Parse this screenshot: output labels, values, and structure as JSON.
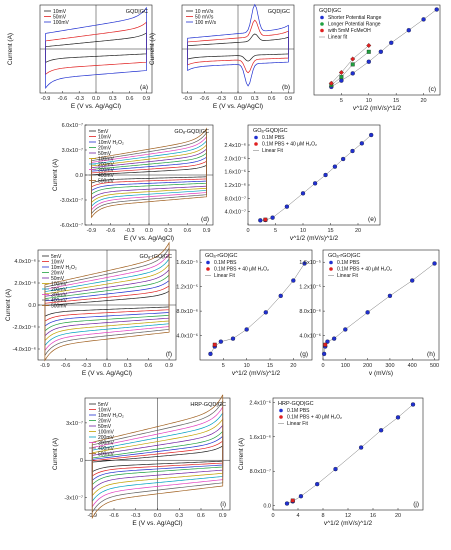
{
  "chart_data": [
    {
      "id": "a",
      "type": "line",
      "label": "(a)",
      "xlabel": "E (V vs. Ag/AgCl)",
      "ylabel": "Current (A)",
      "xlim": [
        -1.0,
        1.0
      ],
      "ylim": [
        -1.2,
        1.2
      ],
      "xticks": [
        "-0.9",
        "-0.6",
        "-0.3",
        "0.0",
        "0.3",
        "0.6",
        "0.9"
      ],
      "yticks": [],
      "annotation": "GQD|GC",
      "series": [
        {
          "name": "10mV",
          "color": "#222222",
          "ya": 0.2,
          "yc": -0.2,
          "slope": 0.15,
          "tip": 0.1
        },
        {
          "name": "50mV",
          "color": "#e02020",
          "ya": 0.4,
          "yc": -0.45,
          "slope": 0.2,
          "tip": 0.15
        },
        {
          "name": "100mV",
          "color": "#2030d0",
          "ya": 0.65,
          "yc": -0.7,
          "slope": 0.25,
          "tip": 0.25
        }
      ]
    },
    {
      "id": "b",
      "type": "line",
      "label": "(b)",
      "xlabel": "E (V vs. Ag/AgCl)",
      "ylabel": "Current (A)",
      "xlim": [
        -1.0,
        1.0
      ],
      "ylim": [
        -1.2,
        1.2
      ],
      "xticks": [
        "-0.9",
        "-0.6",
        "-0.3",
        "0.0",
        "0.3",
        "0.6",
        "0.9"
      ],
      "yticks": [],
      "annotation": "GQD|GC",
      "series": [
        {
          "name": "10 mV/s",
          "color": "#222222",
          "ya": 0.18,
          "yc": -0.18,
          "slope": 0.1,
          "tip": 0.05,
          "peak": 0.2
        },
        {
          "name": "50 mV/s",
          "color": "#e02020",
          "ya": 0.3,
          "yc": -0.3,
          "slope": 0.12,
          "tip": 0.08,
          "peak": 0.45
        },
        {
          "name": "100 mV/s",
          "color": "#2030d0",
          "ya": 0.42,
          "yc": -0.42,
          "slope": 0.14,
          "tip": 0.1,
          "peak": 0.75
        }
      ]
    },
    {
      "id": "c",
      "type": "scatter",
      "label": "(c)",
      "xlabel": "v^1/2 (mV/s)^1/2",
      "ylabel": "",
      "xlim": [
        0,
        23
      ],
      "ylim": [
        0,
        1.0
      ],
      "xticks": [
        "5",
        "10",
        "15",
        "20"
      ],
      "yticks": [],
      "annotation": "GQD|GC",
      "series": [
        {
          "name": "Shorter Potential Range",
          "color": "#2030d0",
          "x": [
            3.16,
            5,
            7.07,
            10,
            12.2,
            14.1,
            17.3,
            20,
            22.4
          ],
          "y": [
            0.09,
            0.16,
            0.24,
            0.37,
            0.48,
            0.58,
            0.72,
            0.84,
            0.95
          ]
        },
        {
          "name": "Longer Potential Range",
          "color": "#20a040",
          "x": [
            3.16,
            5,
            7.07,
            10
          ],
          "y": [
            0.11,
            0.2,
            0.34,
            0.48
          ]
        },
        {
          "name": "with 5mM FcMeOH",
          "color": "#e02020",
          "x": [
            3.16,
            5,
            7.07,
            10
          ],
          "y": [
            0.13,
            0.25,
            0.4,
            0.55
          ]
        },
        {
          "name": "Linear fit",
          "color": "#888888",
          "x": [],
          "y": []
        }
      ]
    },
    {
      "id": "d",
      "type": "line",
      "label": "(d)",
      "xlabel": "E (V vs. Ag/AgCl)",
      "ylabel": "Current (A)",
      "xlim": [
        -1.0,
        1.0
      ],
      "ylim": [
        -6.0,
        6.0
      ],
      "xticks": [
        "-0.9",
        "-0.6",
        "-0.3",
        "0.0",
        "0.3",
        "0.6",
        "0.9"
      ],
      "yticks": [
        "-6.0x10⁻⁷",
        "-3.0x10⁻⁷",
        "0.0",
        "3.0x10⁻⁷",
        "6.0x10⁻⁷"
      ],
      "yticks_values": [
        -6,
        -3,
        0,
        3,
        6
      ],
      "annotation": "GOₐ-GQD|GC",
      "series": [
        {
          "name": "5mV",
          "color": "#222222",
          "ya": 0.4,
          "yc": -0.4,
          "slope": 0.4,
          "tip": 0.4
        },
        {
          "name": "10mV",
          "color": "#e02020",
          "ya": 0.7,
          "yc": -0.7,
          "slope": 0.5,
          "tip": 0.5
        },
        {
          "name": "10mV H₂O₂",
          "color": "#2030d0",
          "ya": 1.0,
          "yc": -1.0,
          "slope": 0.6,
          "tip": 0.6
        },
        {
          "name": "20mV",
          "color": "#20a040",
          "ya": 1.3,
          "yc": -1.3,
          "slope": 0.7,
          "tip": 0.7
        },
        {
          "name": "50mV",
          "color": "#7020a0",
          "ya": 1.6,
          "yc": -1.7,
          "slope": 0.8,
          "tip": 0.8
        },
        {
          "name": "100mV",
          "color": "#c0a000",
          "ya": 1.9,
          "yc": -2.0,
          "slope": 0.9,
          "tip": 0.9
        },
        {
          "name": "200mV",
          "color": "#00a0c0",
          "ya": 2.2,
          "yc": -2.3,
          "slope": 1.0,
          "tip": 1.0
        },
        {
          "name": "300mV",
          "color": "#e040c0",
          "ya": 2.5,
          "yc": -2.6,
          "slope": 1.1,
          "tip": 1.1
        },
        {
          "name": "400mV",
          "color": "#606060",
          "ya": 2.8,
          "yc": -2.9,
          "slope": 1.2,
          "tip": 1.2
        },
        {
          "name": "500mV",
          "color": "#a06020",
          "ya": 3.1,
          "yc": -3.2,
          "slope": 1.3,
          "tip": 1.3
        }
      ]
    },
    {
      "id": "e",
      "type": "scatter",
      "label": "(e)",
      "xlabel": "v^1/2 (mV/s)^1/2",
      "ylabel": "",
      "xlim": [
        0,
        24
      ],
      "ylim": [
        0,
        3.0
      ],
      "xticks": [
        "0",
        "5",
        "10",
        "15",
        "20"
      ],
      "xticks_values": [
        0,
        5,
        10,
        15,
        20
      ],
      "yticks": [
        "4.0x10⁻⁷",
        "8.0x10⁻⁷",
        "1.2x10⁻⁶",
        "1.6x10⁻⁶",
        "2.0x10⁻⁶",
        "2.4x10⁻⁶"
      ],
      "yticks_values": [
        0.4,
        0.8,
        1.2,
        1.6,
        2.0,
        2.4
      ],
      "annotation": "GOₐ-GQD|GC",
      "series": [
        {
          "name": "0.1M PBS",
          "color": "#2030d0",
          "x": [
            2.24,
            3.16,
            4.47,
            7.07,
            10,
            12.2,
            14.1,
            15.8,
            17.3,
            19.0,
            20.7,
            22.4
          ],
          "y": [
            0.14,
            0.15,
            0.22,
            0.55,
            0.95,
            1.25,
            1.5,
            1.75,
            1.98,
            2.22,
            2.45,
            2.7
          ]
        },
        {
          "name": "0.1M PBS + 40 μM H₂O₂",
          "color": "#e02020",
          "x": [
            3.16
          ],
          "y": [
            0.16
          ]
        },
        {
          "name": "Linear Fit",
          "color": "#888888",
          "x": [],
          "y": []
        }
      ]
    },
    {
      "id": "f",
      "type": "line",
      "label": "(f)",
      "xlabel": "E (V vs. Ag/AgCl)",
      "ylabel": "Current (A)",
      "xlim": [
        -1.0,
        1.0
      ],
      "ylim": [
        -5.0,
        5.0
      ],
      "xticks": [
        "-0.9",
        "-0.6",
        "-0.3",
        "0.0",
        "0.3",
        "0.6",
        "0.9"
      ],
      "yticks": [
        "-4.0x10⁻⁶",
        "-2.0x10⁻⁶",
        "0.0",
        "2.0x10⁻⁶",
        "4.0x10⁻⁶"
      ],
      "yticks_values": [
        -4,
        -2,
        0,
        2,
        4
      ],
      "annotation": "GOₐ-rGO|GC",
      "series": [
        {
          "name": "5mV",
          "color": "#222222",
          "ya": 0.4,
          "yc": -0.4,
          "slope": 0.5,
          "tip": 0.4
        },
        {
          "name": "10mV",
          "color": "#e02020",
          "ya": 0.7,
          "yc": -0.7,
          "slope": 0.6,
          "tip": 0.5
        },
        {
          "name": "10mV H₂O₂",
          "color": "#2030d0",
          "ya": 1.0,
          "yc": -1.0,
          "slope": 0.7,
          "tip": 0.6
        },
        {
          "name": "20mV",
          "color": "#20a040",
          "ya": 1.3,
          "yc": -1.3,
          "slope": 0.8,
          "tip": 0.7
        },
        {
          "name": "50mV",
          "color": "#7020a0",
          "ya": 1.6,
          "yc": -1.6,
          "slope": 0.9,
          "tip": 0.8
        },
        {
          "name": "100mV",
          "color": "#c0a000",
          "ya": 1.9,
          "yc": -1.9,
          "slope": 1.0,
          "tip": 0.9
        },
        {
          "name": "200mV",
          "color": "#00a0c0",
          "ya": 2.2,
          "yc": -2.2,
          "slope": 1.1,
          "tip": 1.0
        },
        {
          "name": "300mV",
          "color": "#e040c0",
          "ya": 2.5,
          "yc": -2.5,
          "slope": 1.2,
          "tip": 1.1
        },
        {
          "name": "400mV",
          "color": "#606060",
          "ya": 2.8,
          "yc": -2.8,
          "slope": 1.3,
          "tip": 1.2
        },
        {
          "name": "500mV",
          "color": "#a06020",
          "ya": 3.1,
          "yc": -3.1,
          "slope": 1.4,
          "tip": 1.3
        }
      ]
    },
    {
      "id": "g",
      "type": "scatter",
      "label": "(g)",
      "xlabel": "v^1/2 (mV/s)^1/2",
      "ylabel": "",
      "xlim": [
        0,
        24
      ],
      "ylim": [
        0,
        1.8
      ],
      "xticks": [
        "5",
        "10",
        "15",
        "20"
      ],
      "xticks_values": [
        5,
        10,
        15,
        20
      ],
      "yticks": [
        "4.0x10⁻⁶",
        "8.0x10⁻⁶",
        "1.2x10⁻⁵",
        "1.6x10⁻⁵"
      ],
      "yticks_values": [
        0.4,
        0.8,
        1.2,
        1.6
      ],
      "annotation": "GOₐ-rGO|GC",
      "series": [
        {
          "name": "0.1M PBS",
          "color": "#2030d0",
          "x": [
            2.24,
            3.16,
            4.47,
            7.07,
            10,
            14.1,
            17.3,
            20,
            22.4
          ],
          "y": [
            0.1,
            0.22,
            0.3,
            0.35,
            0.5,
            0.78,
            1.05,
            1.3,
            1.58
          ]
        },
        {
          "name": "0.1M PBS + 40 μM H₂O₂",
          "color": "#e02020",
          "x": [
            3.16
          ],
          "y": [
            0.25
          ]
        },
        {
          "name": "Linear Fit",
          "color": "#888888",
          "x": [],
          "y": []
        }
      ]
    },
    {
      "id": "h",
      "type": "scatter",
      "label": "(h)",
      "xlabel": "v (mV/s)",
      "ylabel": "",
      "xlim": [
        0,
        520
      ],
      "ylim": [
        0,
        1.8
      ],
      "xticks": [
        "0",
        "100",
        "200",
        "300",
        "400",
        "500"
      ],
      "xticks_values": [
        0,
        100,
        200,
        300,
        400,
        500
      ],
      "yticks": [
        "4.0x10⁻⁶",
        "8.0x10⁻⁶",
        "1.2x10⁻⁵",
        "1.6x10⁻⁵"
      ],
      "yticks_values": [
        0.4,
        0.8,
        1.2,
        1.6
      ],
      "annotation": "GOₐ-rGO|GC",
      "series": [
        {
          "name": "0.1M PBS",
          "color": "#2030d0",
          "x": [
            5,
            10,
            20,
            50,
            100,
            200,
            300,
            400,
            500
          ],
          "y": [
            0.1,
            0.22,
            0.3,
            0.35,
            0.5,
            0.78,
            1.05,
            1.3,
            1.58
          ]
        },
        {
          "name": "0.1M PBS + 40 μM H₂O₂",
          "color": "#e02020",
          "x": [
            10
          ],
          "y": [
            0.25
          ]
        },
        {
          "name": "Linear Fit",
          "color": "#888888",
          "x": [],
          "y": []
        }
      ]
    },
    {
      "id": "i",
      "type": "line",
      "label": "(i)",
      "xlabel": "E (V vs. Ag/AgCl)",
      "ylabel": "Current (A)",
      "xlim": [
        -1.0,
        1.0
      ],
      "ylim": [
        -4.0,
        5.0
      ],
      "xticks": [
        "-0.9",
        "-0.6",
        "-0.3",
        "0.0",
        "0.3",
        "0.6",
        "0.9"
      ],
      "yticks": [
        "-3x10⁻⁷",
        "0",
        "3x10⁻⁷"
      ],
      "yticks_values": [
        -3,
        0,
        3
      ],
      "annotation": "HRP-GQD|GC",
      "series": [
        {
          "name": "5mV",
          "color": "#222222",
          "ya": 0.3,
          "yc": -0.3,
          "slope": 0.5,
          "tip": 0.4
        },
        {
          "name": "10mV",
          "color": "#e02020",
          "ya": 0.5,
          "yc": -0.5,
          "slope": 0.6,
          "tip": 0.5
        },
        {
          "name": "10mV H₂O₂",
          "color": "#2030d0",
          "ya": 0.7,
          "yc": -0.7,
          "slope": 0.7,
          "tip": 0.6
        },
        {
          "name": "20mV",
          "color": "#20a040",
          "ya": 0.9,
          "yc": -0.9,
          "slope": 0.8,
          "tip": 0.7
        },
        {
          "name": "50mV",
          "color": "#7020a0",
          "ya": 1.2,
          "yc": -1.2,
          "slope": 0.9,
          "tip": 0.8
        },
        {
          "name": "100mV",
          "color": "#c0a000",
          "ya": 1.5,
          "yc": -1.5,
          "slope": 1.0,
          "tip": 0.9
        },
        {
          "name": "200mV",
          "color": "#00a0c0",
          "ya": 1.8,
          "yc": -1.8,
          "slope": 1.1,
          "tip": 1.0
        },
        {
          "name": "300mV",
          "color": "#e040c0",
          "ya": 2.1,
          "yc": -2.1,
          "slope": 1.2,
          "tip": 1.1
        },
        {
          "name": "400mV",
          "color": "#606060",
          "ya": 2.4,
          "yc": -2.4,
          "slope": 1.3,
          "tip": 1.2
        },
        {
          "name": "500mV",
          "color": "#a06020",
          "ya": 2.7,
          "yc": -2.7,
          "slope": 1.4,
          "tip": 1.3
        }
      ]
    },
    {
      "id": "j",
      "type": "scatter",
      "label": "(j)",
      "xlabel": "v^1/2 (mV/s)^1/2",
      "ylabel": "Current (A)",
      "xlim": [
        0,
        24
      ],
      "ylim": [
        -0.1,
        2.5
      ],
      "xticks": [
        "0",
        "4",
        "8",
        "12",
        "16",
        "20"
      ],
      "xticks_values": [
        0,
        4,
        8,
        12,
        16,
        20
      ],
      "yticks": [
        "0.0",
        "8.0x10⁻⁷",
        "1.6x10⁻⁶",
        "2.4x10⁻⁶"
      ],
      "yticks_values": [
        0,
        0.8,
        1.6,
        2.4
      ],
      "annotation": "HRP-GQD|GC",
      "series": [
        {
          "name": "0.1M PBS",
          "color": "#2030d0",
          "x": [
            2.24,
            3.16,
            4.47,
            7.07,
            10,
            14.1,
            17.3,
            20,
            22.4
          ],
          "y": [
            0.05,
            0.1,
            0.22,
            0.5,
            0.85,
            1.35,
            1.75,
            2.05,
            2.35
          ]
        },
        {
          "name": "0.1M PBS + 40 μM H₂O₂",
          "color": "#e02020",
          "x": [
            3.16
          ],
          "y": [
            0.12
          ]
        },
        {
          "name": "Linear Fit",
          "color": "#888888",
          "x": [],
          "y": []
        }
      ]
    }
  ]
}
